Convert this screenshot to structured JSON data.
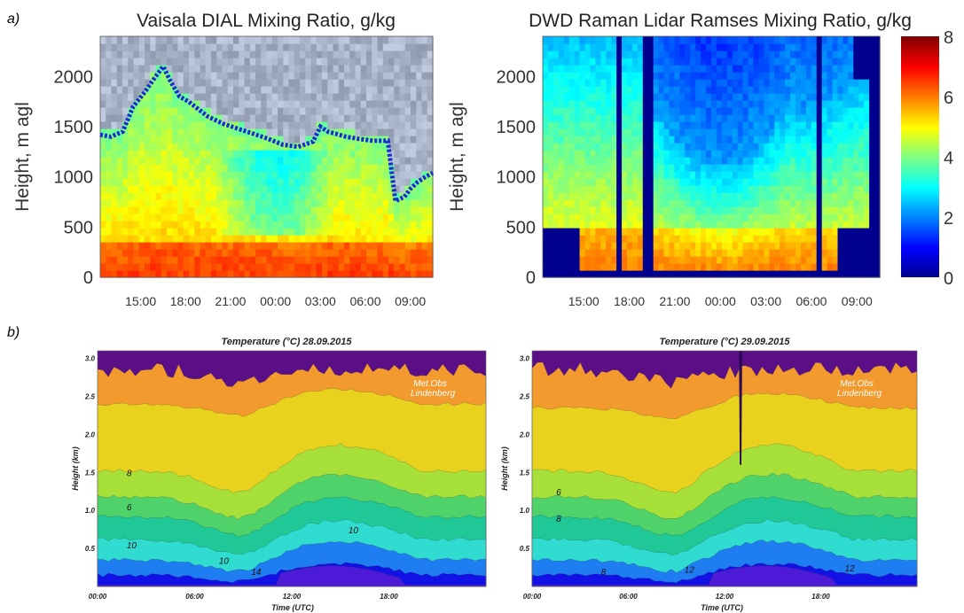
{
  "panel_labels": {
    "a": "a)",
    "b": "b)"
  },
  "chart_data": [
    {
      "type": "heatmap",
      "title": "Vaisala DIAL Mixing Ratio, g/kg",
      "ylabel": "Height, m agl",
      "ylim": [
        0,
        2400
      ],
      "yticks": [
        0,
        500,
        1000,
        1500,
        2000
      ],
      "xticks": [
        "15:00",
        "18:00",
        "21:00",
        "00:00",
        "03:00",
        "06:00",
        "09:00"
      ],
      "colorbar": {
        "range": [
          0,
          8
        ],
        "ticks": [
          0,
          2,
          4,
          6,
          8
        ]
      },
      "overlay_line": {
        "name": "boundary layer top",
        "color": "#1a2bd6",
        "x_hours": [
          12.3,
          13.0,
          13.8,
          14.5,
          15.3,
          16.0,
          16.5,
          17.0,
          17.6,
          18.2,
          18.8,
          19.5,
          20.5,
          21.5,
          22.5,
          23.5,
          24.5,
          25.5,
          26.5,
          27.0,
          27.5,
          28.0,
          28.7,
          29.5,
          30.0,
          30.5,
          31.5,
          32.0,
          32.6,
          33.0,
          33.5,
          34.0,
          34.5
        ],
        "height_m": [
          1420,
          1400,
          1450,
          1700,
          1850,
          2000,
          2100,
          1950,
          1800,
          1750,
          1680,
          1600,
          1530,
          1480,
          1430,
          1380,
          1320,
          1300,
          1350,
          1500,
          1450,
          1430,
          1400,
          1380,
          1370,
          1360,
          1360,
          760,
          800,
          880,
          950,
          1000,
          1040
        ]
      }
    },
    {
      "type": "heatmap",
      "title": "DWD Raman Lidar Ramses Mixing Ratio, g/kg",
      "ylabel": "Height, m agl",
      "ylim": [
        0,
        2400
      ],
      "yticks": [
        0,
        500,
        1000,
        1500,
        2000
      ],
      "xticks": [
        "15:00",
        "18:00",
        "21:00",
        "00:00",
        "03:00",
        "06:00",
        "09:00"
      ],
      "colorbar": {
        "range": [
          0,
          8
        ],
        "ticks": [
          0,
          2,
          4,
          6,
          8
        ]
      }
    },
    {
      "type": "heatmap",
      "title": "Temperature (°C) 28.09.2015",
      "ylabel": "Height (km)",
      "xlabel": "Time (UTC)",
      "ylim": [
        0,
        3.0
      ],
      "yticks": [
        "0.5",
        "1.0",
        "1.5",
        "2.0",
        "2.5",
        "3.0"
      ],
      "xticks": [
        "00:00",
        "06:00",
        "12:00",
        "18:00"
      ],
      "annotation": [
        "Met.Obs",
        "Lindenberg"
      ],
      "contour_labels": [
        "6",
        "8",
        "10",
        "10",
        "10",
        "14"
      ]
    },
    {
      "type": "heatmap",
      "title": "Temperature (°C) 29.09.2015",
      "ylabel": "Height (km)",
      "xlabel": "Time (UTC)",
      "ylim": [
        0,
        3.0
      ],
      "yticks": [
        "0.5",
        "1.0",
        "1.5",
        "2.0",
        "2.5",
        "3.0"
      ],
      "xticks": [
        "00:00",
        "06:00",
        "12:00",
        "18:00"
      ],
      "annotation": [
        "Met.Obs",
        "Lindenberg"
      ],
      "contour_labels": [
        "6",
        "8",
        "8",
        "12",
        "12"
      ]
    }
  ]
}
